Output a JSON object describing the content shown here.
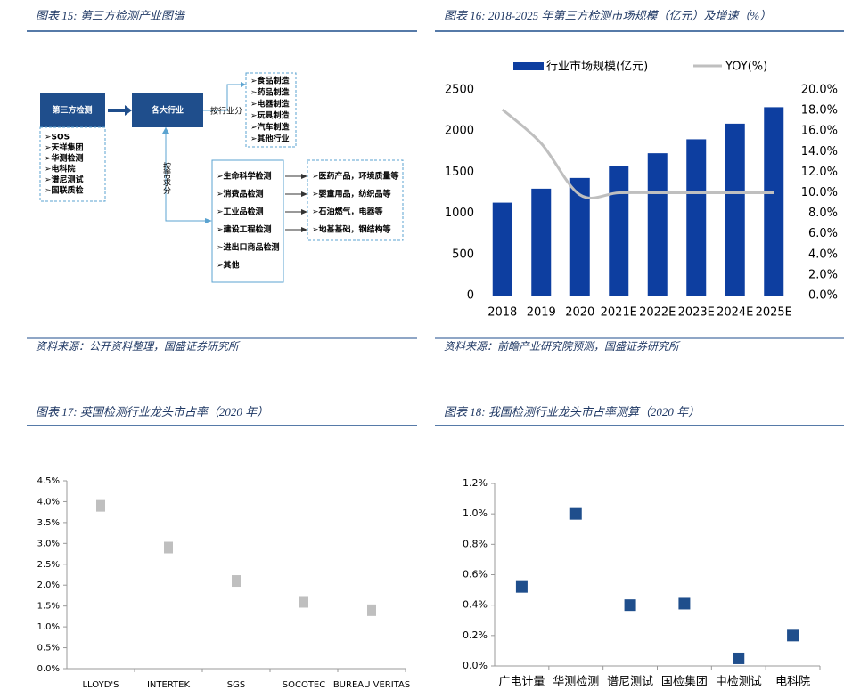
{
  "diagram": {
    "title": "图表 15: 第三方检测产业图谱",
    "source": "资料来源：公开资料整理，国盛证券研究所",
    "root": "第三方检测",
    "hub": "各大行业",
    "by_industry": "按行业分",
    "by_demand": "按需求分",
    "companies": [
      "➢SOS",
      "➢天祥集团",
      "➢华测检测",
      "➢电科院",
      "➢谱尼测试",
      "➢国联质检"
    ],
    "industries": [
      "➢食品制造",
      "➢药品制造",
      "➢电器制造",
      "➢玩具制造",
      "➢汽车制造",
      "➢其他行业"
    ],
    "demands": [
      "➢生命科学检测",
      "➢消费品检测",
      "➢工业品检测",
      "➢建设工程检测",
      "➢进出口商品检测",
      "➢其他"
    ],
    "examples": [
      "➢医药产品，环境质量等",
      "➢婴童用品，纺织品等",
      "➢石油燃气，电器等",
      "➢地基基础，钢结构等"
    ]
  },
  "chart_data": [
    {
      "type": "bar_line",
      "title": "图表 16: 2018-2025 年第三方检测市场规模（亿元）及增速（%）",
      "source": "资料来源：前瞻产业研究院预测，国盛证券研究所",
      "categories": [
        "2018",
        "2019",
        "2020",
        "2021E",
        "2022E",
        "2023E",
        "2024E",
        "2025E"
      ],
      "series": [
        {
          "name": "行业市场规模(亿元)",
          "color": "#0d3ea0",
          "values": [
            1130,
            1300,
            1430,
            1570,
            1730,
            1900,
            2090,
            2290
          ]
        },
        {
          "name": "YOY(%)",
          "color": "#bfbfbf",
          "axis": "y2",
          "values": [
            18.1,
            14.8,
            9.8,
            10.0,
            10.0,
            10.0,
            10.0,
            10.0
          ]
        }
      ],
      "ylim": [
        0,
        2500
      ],
      "yticks": [
        0,
        500,
        1000,
        1500,
        2000,
        2500
      ],
      "y2lim": [
        0,
        20
      ],
      "y2ticks": [
        {
          "value": 0,
          "label": "0.0%"
        },
        {
          "value": 2,
          "label": "2.0%"
        },
        {
          "value": 4,
          "label": "4.0%"
        },
        {
          "value": 6,
          "label": "6.0%"
        },
        {
          "value": 8,
          "label": "8.0%"
        },
        {
          "value": 10,
          "label": "10.0%"
        },
        {
          "value": 12,
          "label": "12.0%"
        },
        {
          "value": 14,
          "label": "14.0%"
        },
        {
          "value": 16,
          "label": "16.0%"
        },
        {
          "value": 18,
          "label": "18.0%"
        },
        {
          "value": 20,
          "label": "20.0%"
        }
      ],
      "legend": "top"
    },
    {
      "type": "scatter",
      "title": "图表 17: 英国检测行业龙头市占率（2020 年）",
      "categories": [
        "LLOYD'S",
        "INTERTEK",
        "SGS",
        "SOCOTEC",
        "BUREAU VERITAS"
      ],
      "values": [
        3.9,
        2.9,
        2.1,
        1.6,
        1.4
      ],
      "color": "#bfbfbf",
      "ylim": [
        0,
        4.5
      ],
      "yticks": [
        {
          "value": 0,
          "label": "0.0%"
        },
        {
          "value": 0.5,
          "label": "0.5%"
        },
        {
          "value": 1,
          "label": "1.0%"
        },
        {
          "value": 1.5,
          "label": "1.5%"
        },
        {
          "value": 2,
          "label": "2.0%"
        },
        {
          "value": 2.5,
          "label": "2.5%"
        },
        {
          "value": 3,
          "label": "3.0%"
        },
        {
          "value": 3.5,
          "label": "3.5%"
        },
        {
          "value": 4,
          "label": "4.0%"
        },
        {
          "value": 4.5,
          "label": "4.5%"
        }
      ]
    },
    {
      "type": "scatter",
      "title": "图表 18: 我国检测行业龙头市占率测算（2020 年）",
      "categories": [
        "广电计量",
        "华测检测",
        "谱尼测试",
        "国检集团",
        "中检测试",
        "电科院"
      ],
      "values": [
        0.52,
        1.0,
        0.4,
        0.41,
        0.05,
        0.2
      ],
      "color": "#1f4e8c",
      "ylim": [
        0,
        1.2
      ],
      "yticks": [
        {
          "value": 0,
          "label": "0.0%"
        },
        {
          "value": 0.2,
          "label": "0.2%"
        },
        {
          "value": 0.4,
          "label": "0.4%"
        },
        {
          "value": 0.6,
          "label": "0.6%"
        },
        {
          "value": 0.8,
          "label": "0.8%"
        },
        {
          "value": 1,
          "label": "1.0%"
        },
        {
          "value": 1.2,
          "label": "1.2%"
        }
      ]
    }
  ]
}
